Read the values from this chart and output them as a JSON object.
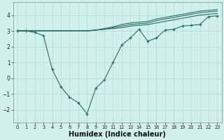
{
  "bg_color": "#cff0eb",
  "grid_color": "#b0d8d2",
  "line_color": "#2d6b65",
  "xlabel": "Humidex (Indice chaleur)",
  "xlabel_fontsize": 7,
  "xlim": [
    -0.5,
    23.5
  ],
  "ylim": [
    -2.8,
    4.8
  ],
  "yticks": [
    -2,
    -1,
    0,
    1,
    2,
    3,
    4
  ],
  "xticks": [
    0,
    1,
    2,
    3,
    4,
    5,
    6,
    7,
    8,
    9,
    10,
    11,
    12,
    13,
    14,
    15,
    16,
    17,
    18,
    19,
    20,
    21,
    22,
    23
  ],
  "line1_x": [
    0,
    1,
    2,
    3,
    4,
    5,
    6,
    7,
    8,
    9,
    10,
    11,
    12,
    13,
    14,
    15,
    16,
    17,
    18,
    19,
    20,
    21,
    22,
    23
  ],
  "line1_y": [
    3.0,
    3.0,
    3.0,
    3.0,
    3.0,
    3.0,
    3.0,
    3.0,
    3.0,
    3.05,
    3.1,
    3.15,
    3.2,
    3.3,
    3.35,
    3.4,
    3.5,
    3.6,
    3.7,
    3.8,
    3.9,
    4.0,
    4.05,
    4.1
  ],
  "line2_x": [
    0,
    1,
    2,
    3,
    4,
    5,
    6,
    7,
    8,
    9,
    10,
    11,
    12,
    13,
    14,
    15,
    16,
    17,
    18,
    19,
    20,
    21,
    22,
    23
  ],
  "line2_y": [
    3.0,
    3.0,
    3.0,
    3.0,
    3.0,
    3.0,
    3.0,
    3.0,
    3.0,
    3.05,
    3.1,
    3.2,
    3.3,
    3.4,
    3.45,
    3.5,
    3.65,
    3.75,
    3.85,
    3.95,
    4.05,
    4.15,
    4.2,
    4.25
  ],
  "line3_x": [
    0,
    1,
    2,
    3,
    4,
    5,
    6,
    7,
    8,
    9,
    10,
    11,
    12,
    13,
    14,
    15,
    16,
    17,
    18,
    19,
    20,
    21,
    22,
    23
  ],
  "line3_y": [
    3.0,
    3.0,
    3.0,
    3.0,
    3.0,
    3.0,
    3.0,
    3.0,
    3.0,
    3.05,
    3.15,
    3.25,
    3.4,
    3.5,
    3.55,
    3.6,
    3.75,
    3.85,
    3.95,
    4.05,
    4.15,
    4.25,
    4.3,
    4.35
  ],
  "main_x": [
    0,
    1,
    2,
    3,
    4,
    5,
    6,
    7,
    8,
    9,
    10,
    11,
    12,
    13,
    14,
    15,
    16,
    17,
    18,
    19,
    20,
    21,
    22,
    23
  ],
  "main_y": [
    3.0,
    3.0,
    2.9,
    2.7,
    0.55,
    -0.55,
    -1.2,
    -1.55,
    -2.25,
    -0.65,
    -0.1,
    1.0,
    2.1,
    2.55,
    3.1,
    2.35,
    2.55,
    3.05,
    3.1,
    3.3,
    3.35,
    3.4,
    3.9,
    3.95
  ]
}
